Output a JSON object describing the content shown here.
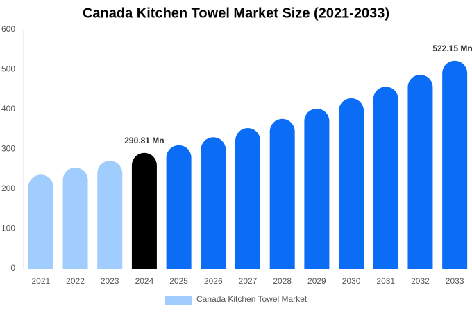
{
  "chart_data": {
    "type": "bar",
    "title": "Canada Kitchen Towel Market Size (2021-2033)",
    "categories": [
      "2021",
      "2022",
      "2023",
      "2024",
      "2025",
      "2026",
      "2027",
      "2028",
      "2029",
      "2030",
      "2031",
      "2032",
      "2033"
    ],
    "series": [
      {
        "name": "Canada Kitchen Towel Market",
        "color": "#a0cdfd",
        "colors": [
          "#a0cdfd",
          "#a0cdfd",
          "#a0cdfd",
          "#000000",
          "#0b6cf5",
          "#0b6cf5",
          "#0b6cf5",
          "#0b6cf5",
          "#0b6cf5",
          "#0b6cf5",
          "#0b6cf5",
          "#0b6cf5",
          "#0b6cf5"
        ],
        "values": [
          236,
          254,
          271,
          290.81,
          310,
          330,
          353,
          376,
          402,
          428,
          457,
          487,
          522.15
        ],
        "value_labels": [
          null,
          null,
          null,
          "290.81 Mn",
          null,
          null,
          null,
          null,
          null,
          null,
          null,
          null,
          "522.15 Mn"
        ]
      }
    ],
    "ylim": [
      0,
      600
    ],
    "yticks": [
      0,
      100,
      200,
      300,
      400,
      500,
      600
    ],
    "grid": false
  }
}
